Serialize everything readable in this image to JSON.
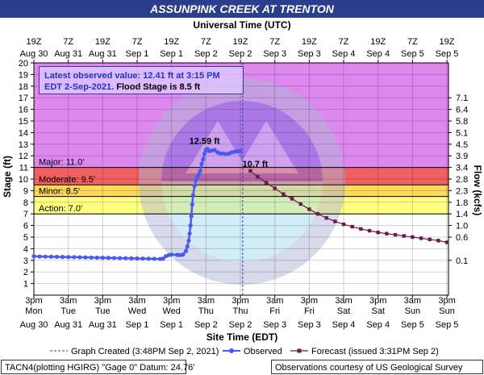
{
  "title": "ASSUNPINK CREEK AT TRENTON",
  "top_axis_title": "Universal Time (UTC)",
  "bottom_axis_title": "Site Time (EDT)",
  "left_axis_title": "Stage (ft)",
  "right_axis_title": "Flow (kcfs)",
  "info_box": {
    "line1": "Latest observed value: 12.41 ft at 3:15 PM",
    "line2_blue": "EDT 2-Sep-2021.",
    "line2_black": " Flood Stage is 8.5 ft"
  },
  "legend": {
    "graph_created": "Graph Created (3:48PM Sep 2, 2021)",
    "observed": "Observed",
    "forecast": "Forecast (issued 3:31PM Sep 2)"
  },
  "footer": {
    "left": "TACN4(plotting HGIRG) \"Gage 0\" Datum: 24.76'",
    "right": "Observations courtesy of US Geological Survey"
  },
  "colors": {
    "major": "#f06060",
    "moderate": "#ff9a78",
    "minor": "#ffd95a",
    "action": "#ffff80",
    "above": "#dd88ee",
    "observed": "#4a5af0",
    "forecast": "#6b1a4a",
    "title_bar": "#2a3e8c"
  },
  "chart_data": {
    "type": "line",
    "title": "ASSUNPINK CREEK AT TRENTON",
    "xlabel": "Site Time (EDT)",
    "ylabel": "Stage (ft)",
    "y2label": "Flow (kcfs)",
    "xlim_hours": [
      0,
      132
    ],
    "ylim": [
      0,
      20
    ],
    "grid": true,
    "bottom_ticks": [
      {
        "h": 0,
        "t": "3pm",
        "d": "Mon",
        "date": "Aug 30"
      },
      {
        "h": 12,
        "t": "3am",
        "d": "Tue",
        "date": "Aug 31"
      },
      {
        "h": 24,
        "t": "3pm",
        "d": "Tue",
        "date": "Aug 31"
      },
      {
        "h": 36,
        "t": "3am",
        "d": "Wed",
        "date": "Sep 1"
      },
      {
        "h": 48,
        "t": "3pm",
        "d": "Wed",
        "date": "Sep 1"
      },
      {
        "h": 60,
        "t": "3am",
        "d": "Thu",
        "date": "Sep 2"
      },
      {
        "h": 72,
        "t": "3pm",
        "d": "Thu",
        "date": "Sep 2"
      },
      {
        "h": 84,
        "t": "3am",
        "d": "Fri",
        "date": "Sep 3"
      },
      {
        "h": 96,
        "t": "3pm",
        "d": "Fri",
        "date": "Sep 3"
      },
      {
        "h": 108,
        "t": "3am",
        "d": "Sat",
        "date": "Sep 4"
      },
      {
        "h": 120,
        "t": "3pm",
        "d": "Sat",
        "date": "Sep 4"
      },
      {
        "h": 132,
        "t": "3am",
        "d": "Sun",
        "date": "Sep 5"
      }
    ],
    "bottom_ticks_tail": [
      {
        "t": "3pm",
        "d": "Sun",
        "date": "Sep 5"
      }
    ],
    "top_ticks": [
      {
        "t": "19Z",
        "date": "Aug 30"
      },
      {
        "t": "7Z",
        "date": "Aug 31"
      },
      {
        "t": "19Z",
        "date": "Aug 31"
      },
      {
        "t": "7Z",
        "date": "Sep 1"
      },
      {
        "t": "19Z",
        "date": "Sep 1"
      },
      {
        "t": "7Z",
        "date": "Sep 2"
      },
      {
        "t": "19Z",
        "date": "Sep 2"
      },
      {
        "t": "7Z",
        "date": "Sep 3"
      },
      {
        "t": "19Z",
        "date": "Sep 3"
      },
      {
        "t": "7Z",
        "date": "Sep 4"
      },
      {
        "t": "19Z",
        "date": "Sep 4"
      },
      {
        "t": "7Z",
        "date": "Sep 5"
      },
      {
        "t": "19Z",
        "date": "Sep 5"
      }
    ],
    "left_ticks": [
      1,
      2,
      3,
      4,
      5,
      6,
      7,
      8,
      9,
      10,
      11,
      12,
      13,
      14,
      15,
      16,
      17,
      18,
      19,
      20
    ],
    "right_ticks": [
      {
        "stage": 3.0,
        "label": "0.1"
      },
      {
        "stage": 5.0,
        "label": "0.6"
      },
      {
        "stage": 6.0,
        "label": "1.0"
      },
      {
        "stage": 7.0,
        "label": "1.4"
      },
      {
        "stage": 8.0,
        "label": "1.8"
      },
      {
        "stage": 9.0,
        "label": "2.3"
      },
      {
        "stage": 10.0,
        "label": "2.8"
      },
      {
        "stage": 11.0,
        "label": "3.4"
      },
      {
        "stage": 12.0,
        "label": "3.9"
      },
      {
        "stage": 13.0,
        "label": "4.5"
      },
      {
        "stage": 14.0,
        "label": "5.1"
      },
      {
        "stage": 15.0,
        "label": "5.8"
      },
      {
        "stage": 16.0,
        "label": "6.4"
      },
      {
        "stage": 17.0,
        "label": "7.1"
      }
    ],
    "flood_categories": [
      {
        "name": "Action",
        "label": "Action: 7.0'",
        "low": 7.0,
        "high": 8.5
      },
      {
        "name": "Minor",
        "label": "Minor: 8.5'",
        "low": 8.5,
        "high": 9.5
      },
      {
        "name": "Moderate",
        "label": "Moderate: 9.5'",
        "low": 9.5,
        "high": 11.0
      },
      {
        "name": "Major",
        "label": "Major: 11.0'",
        "low": 11.0,
        "high": 20.0
      }
    ],
    "graph_created_hour": 72.8,
    "peak_label": {
      "text": "12.59 ft",
      "x": 61.5,
      "y": 12.59
    },
    "forecast_label": {
      "text": "10.7 ft",
      "x": 75.5,
      "y": 10.7
    },
    "observed": [
      [
        0,
        3.35
      ],
      [
        2,
        3.33
      ],
      [
        4,
        3.32
      ],
      [
        6,
        3.31
      ],
      [
        8,
        3.3
      ],
      [
        10,
        3.29
      ],
      [
        12,
        3.28
      ],
      [
        14,
        3.27
      ],
      [
        16,
        3.26
      ],
      [
        18,
        3.25
      ],
      [
        20,
        3.24
      ],
      [
        22,
        3.23
      ],
      [
        24,
        3.22
      ],
      [
        26,
        3.21
      ],
      [
        28,
        3.2
      ],
      [
        30,
        3.19
      ],
      [
        32,
        3.18
      ],
      [
        34,
        3.17
      ],
      [
        36,
        3.16
      ],
      [
        38,
        3.15
      ],
      [
        40,
        3.14
      ],
      [
        42,
        3.13
      ],
      [
        44,
        3.12
      ],
      [
        45,
        3.14
      ],
      [
        46,
        3.35
      ],
      [
        47,
        3.45
      ],
      [
        48,
        3.5
      ],
      [
        50,
        3.47
      ],
      [
        51,
        3.45
      ],
      [
        52,
        3.5
      ],
      [
        53,
        3.8
      ],
      [
        53.5,
        4.2
      ],
      [
        54,
        4.7
      ],
      [
        54.3,
        5.3
      ],
      [
        54.6,
        6.0
      ],
      [
        54.9,
        6.8
      ],
      [
        55.2,
        7.8
      ],
      [
        55.5,
        8.6
      ],
      [
        56,
        9.4
      ],
      [
        56.5,
        9.9
      ],
      [
        57,
        10.2
      ],
      [
        57.5,
        10.4
      ],
      [
        58,
        10.7
      ],
      [
        58.5,
        11.3
      ],
      [
        59,
        11.7
      ],
      [
        59.5,
        12.2
      ],
      [
        60,
        12.5
      ],
      [
        60.5,
        12.59
      ],
      [
        61,
        12.4
      ],
      [
        62,
        12.45
      ],
      [
        63,
        12.5
      ],
      [
        64,
        12.3
      ],
      [
        65,
        12.2
      ],
      [
        66,
        12.2
      ],
      [
        67,
        12.15
      ],
      [
        68,
        12.2
      ],
      [
        69,
        12.3
      ],
      [
        70,
        12.35
      ],
      [
        71,
        12.4
      ],
      [
        72,
        12.41
      ]
    ],
    "forecast": [
      [
        75.5,
        10.7
      ],
      [
        78,
        10.2
      ],
      [
        81,
        9.7
      ],
      [
        84,
        9.2
      ],
      [
        87,
        8.7
      ],
      [
        90,
        8.3
      ],
      [
        93,
        7.85
      ],
      [
        96,
        7.4
      ],
      [
        99,
        7.0
      ],
      [
        102,
        6.65
      ],
      [
        105,
        6.35
      ],
      [
        108,
        6.1
      ],
      [
        111,
        5.9
      ],
      [
        114,
        5.7
      ],
      [
        117,
        5.55
      ],
      [
        120,
        5.4
      ],
      [
        123,
        5.3
      ],
      [
        126,
        5.2
      ],
      [
        129,
        5.1
      ],
      [
        132,
        5.0
      ],
      [
        135,
        4.9
      ],
      [
        138,
        4.8
      ],
      [
        141,
        4.7
      ],
      [
        144,
        4.55
      ]
    ]
  }
}
